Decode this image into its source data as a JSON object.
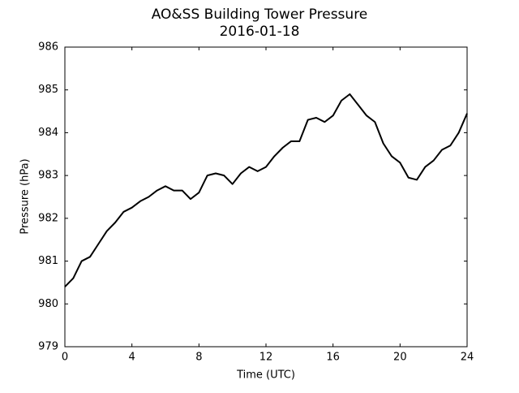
{
  "chart_data": {
    "type": "line",
    "title": "AO&SS Building Tower Pressure",
    "subtitle": "2016-01-18",
    "x_label": "Time (UTC)",
    "y_label": "Pressure (hPa)",
    "x": [
      0,
      0.5,
      1,
      1.5,
      2,
      2.5,
      3,
      3.5,
      4,
      4.5,
      5,
      5.5,
      6,
      6.5,
      7,
      7.5,
      8,
      8.5,
      9,
      9.5,
      10,
      10.5,
      11,
      11.5,
      12,
      12.5,
      13,
      13.5,
      14,
      14.5,
      15,
      15.5,
      16,
      16.5,
      17,
      17.5,
      18,
      18.5,
      19,
      19.5,
      20,
      20.5,
      21,
      21.5,
      22,
      22.5,
      23,
      23.5,
      24
    ],
    "series": [
      {
        "color": "#000000",
        "values": [
          980.4,
          980.6,
          981.0,
          981.1,
          981.4,
          981.7,
          981.9,
          982.15,
          982.25,
          982.4,
          982.5,
          982.65,
          982.75,
          982.65,
          982.65,
          982.45,
          982.6,
          983.0,
          983.05,
          983.0,
          982.8,
          983.05,
          983.2,
          983.1,
          983.2,
          983.45,
          983.65,
          983.8,
          983.8,
          984.3,
          984.35,
          984.25,
          984.4,
          984.75,
          984.9,
          984.65,
          984.4,
          984.25,
          983.75,
          983.45,
          983.3,
          982.95,
          982.9,
          983.2,
          983.35,
          983.6,
          983.7,
          984.0,
          984.45
        ]
      }
    ],
    "xlim": [
      0,
      24
    ],
    "xticks": [
      0,
      4,
      8,
      12,
      16,
      20,
      24
    ],
    "ylim": [
      979,
      986
    ],
    "yticks": [
      979,
      980,
      981,
      982,
      983,
      984,
      985,
      986
    ],
    "grid": false
  }
}
